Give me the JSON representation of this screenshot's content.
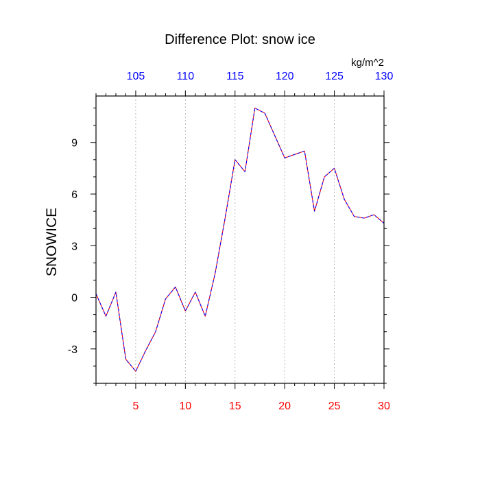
{
  "chart_data": {
    "type": "line",
    "title": "Difference Plot: snow ice",
    "ylabel": "SNOWICE",
    "units_label": "kg/m^2",
    "xlim": [
      1,
      30
    ],
    "ylim": [
      -5.0,
      11.7
    ],
    "x_ticks": [
      5,
      10,
      15,
      20,
      25,
      30
    ],
    "x_tick_labels": [
      "5",
      "10",
      "15",
      "20",
      "25",
      "30"
    ],
    "top_ticks": [
      105,
      110,
      115,
      120,
      125,
      130
    ],
    "top_tick_labels": [
      "105",
      "110",
      "115",
      "120",
      "125",
      "130"
    ],
    "y_ticks": [
      -3,
      0,
      3,
      6,
      9
    ],
    "y_tick_labels": [
      "-3",
      "0",
      "3",
      "6",
      "9"
    ],
    "grid": "vertical dashed at x ticks",
    "colors": {
      "bottom_axis_labels": "#ff0000",
      "top_axis_labels": "#0000ff",
      "line_primary": "#ff0000",
      "line_secondary": "#0000ff",
      "grid": "#aaaaaa",
      "frame": "#000000"
    },
    "series": [
      {
        "x": [
          1,
          2,
          3,
          4,
          5,
          6,
          7,
          8,
          9,
          10,
          11,
          12,
          13,
          14,
          15,
          16,
          17,
          18,
          19,
          20,
          21,
          22,
          23,
          24,
          25,
          26,
          27,
          28,
          29,
          30
        ],
        "values": [
          0.2,
          -1.1,
          0.3,
          -3.6,
          -4.3,
          -3.1,
          -2.0,
          -0.1,
          0.6,
          -0.8,
          0.3,
          -1.1,
          1.4,
          4.6,
          8.0,
          7.3,
          11.0,
          10.7,
          9.4,
          8.1,
          8.3,
          8.5,
          5.0,
          7.0,
          7.5,
          5.7,
          4.7,
          4.6,
          4.8,
          4.3
        ]
      }
    ]
  }
}
